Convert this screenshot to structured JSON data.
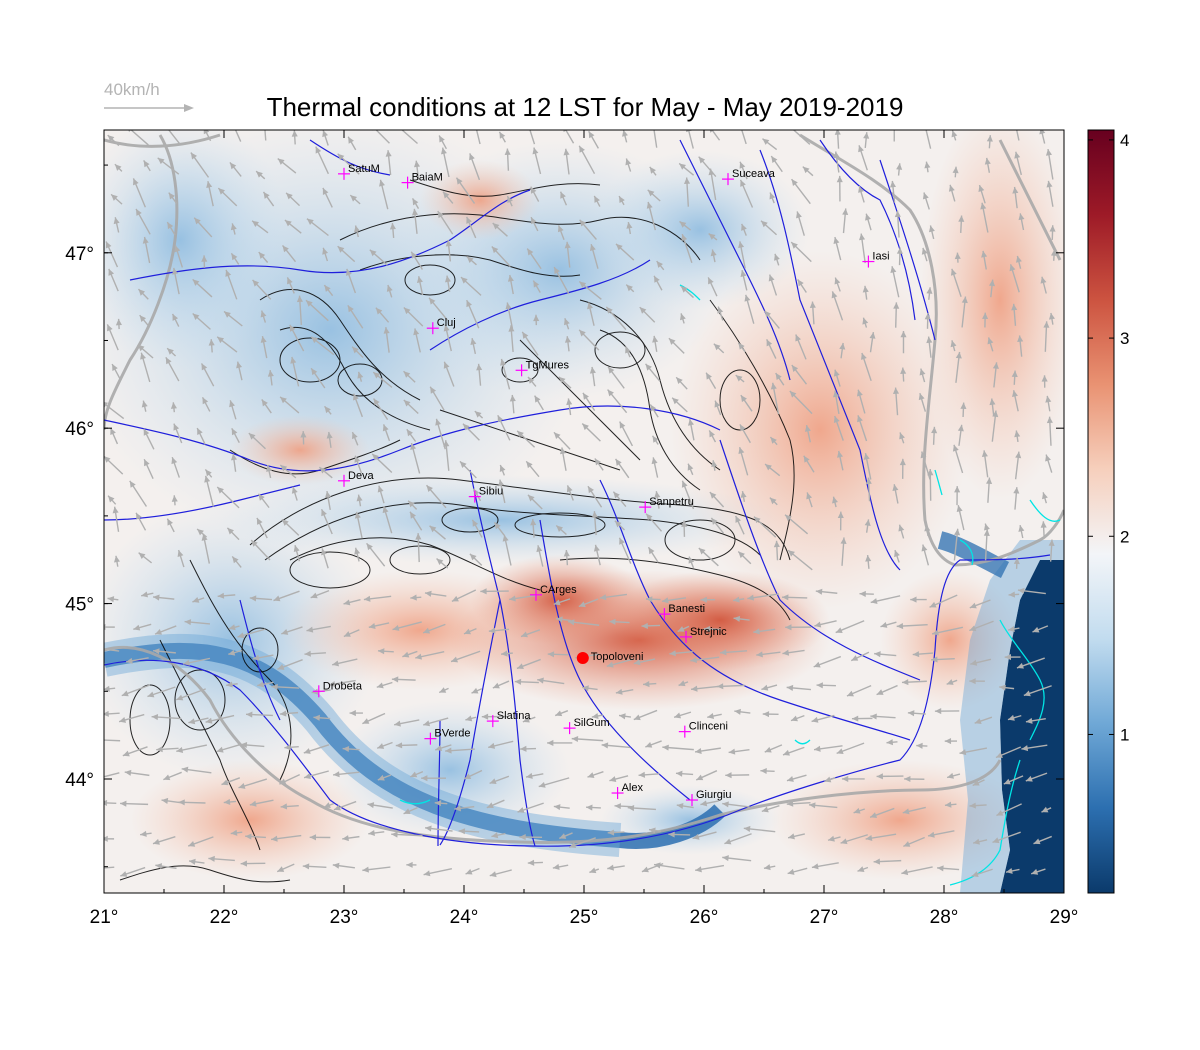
{
  "title": "Thermal conditions at 12 LST for May - May  2019-2019",
  "wind_key": {
    "label": "40km/h"
  },
  "axes": {
    "lon_ticks": [
      "21°",
      "22°",
      "23°",
      "24°",
      "25°",
      "26°",
      "27°",
      "28°",
      "29°"
    ],
    "lat_ticks": [
      "44°",
      "45°",
      "46°",
      "47°"
    ],
    "lon_range": [
      21,
      29
    ],
    "lat_range": [
      43.35,
      47.7
    ]
  },
  "colorbar": {
    "ticks": [
      "1",
      "2",
      "3",
      "4"
    ],
    "range": [
      0.2,
      4.05
    ],
    "colors": [
      "#0b3a6b",
      "#2c6fb0",
      "#6fa8d6",
      "#c2dcef",
      "#f3f5f8",
      "#f6cfbc",
      "#e99272",
      "#cc5340",
      "#9d1a27",
      "#67001f"
    ]
  },
  "cities": [
    {
      "name": "SatuM",
      "lon": 23.0,
      "lat": 47.45
    },
    {
      "name": "BaiaM",
      "lon": 23.53,
      "lat": 47.4
    },
    {
      "name": "Suceava",
      "lon": 26.2,
      "lat": 47.42
    },
    {
      "name": "Iasi",
      "lon": 27.37,
      "lat": 46.95
    },
    {
      "name": "Cluj",
      "lon": 23.74,
      "lat": 46.57
    },
    {
      "name": "TgMures",
      "lon": 24.48,
      "lat": 46.33
    },
    {
      "name": "Deva",
      "lon": 23.0,
      "lat": 45.7
    },
    {
      "name": "Sibiu",
      "lon": 24.09,
      "lat": 45.61
    },
    {
      "name": "Sanpetru",
      "lon": 25.51,
      "lat": 45.55
    },
    {
      "name": "CArges",
      "lon": 24.6,
      "lat": 45.05
    },
    {
      "name": "Banesti",
      "lon": 25.67,
      "lat": 44.94
    },
    {
      "name": "Strejnic",
      "lon": 25.85,
      "lat": 44.81
    },
    {
      "name": "Drobeta",
      "lon": 22.79,
      "lat": 44.5
    },
    {
      "name": "Slatina",
      "lon": 24.24,
      "lat": 44.33
    },
    {
      "name": "SilGum",
      "lon": 24.88,
      "lat": 44.29
    },
    {
      "name": "Clinceni",
      "lon": 25.84,
      "lat": 44.27
    },
    {
      "name": "BVerde",
      "lon": 23.72,
      "lat": 44.23
    },
    {
      "name": "Alex",
      "lon": 25.28,
      "lat": 43.92
    },
    {
      "name": "Giurgiu",
      "lon": 25.9,
      "lat": 43.88
    }
  ],
  "highlight_station": {
    "name": "Topoloveni",
    "lon": 24.99,
    "lat": 44.69,
    "color": "#ff0000"
  },
  "colors": {
    "city_marker": "#ff00ff",
    "river": "#1f1fdc",
    "border": "#a9a9a9",
    "contour": "#000000",
    "wind_arrow": "#b0b0b0",
    "cyan_coast": "#00e5e5"
  }
}
